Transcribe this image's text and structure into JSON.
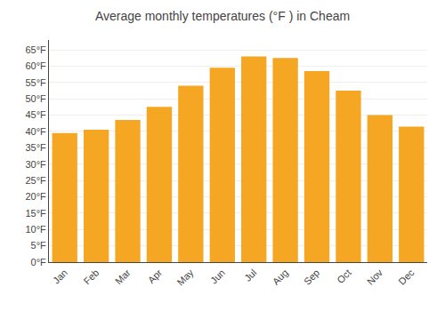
{
  "chart_data": {
    "type": "bar",
    "title": "Average monthly temperatures (°F ) in Cheam",
    "categories": [
      "Jan",
      "Feb",
      "Mar",
      "Apr",
      "May",
      "Jun",
      "Jul",
      "Aug",
      "Sep",
      "Oct",
      "Nov",
      "Dec"
    ],
    "values": [
      39.5,
      40.5,
      43.5,
      47.5,
      54.0,
      59.5,
      63.0,
      62.5,
      58.5,
      52.5,
      45.0,
      41.5
    ],
    "color": "#F5A623",
    "ylim": [
      0,
      68
    ],
    "yticks": [
      {
        "value": 0,
        "label": "0°F"
      },
      {
        "value": 5,
        "label": "5°F"
      },
      {
        "value": 10,
        "label": "10°F"
      },
      {
        "value": 15,
        "label": "15°F"
      },
      {
        "value": 20,
        "label": "20°F"
      },
      {
        "value": 25,
        "label": "25°F"
      },
      {
        "value": 30,
        "label": "30°F"
      },
      {
        "value": 35,
        "label": "35°F"
      },
      {
        "value": 40,
        "label": "40°F"
      },
      {
        "value": 45,
        "label": "45°F"
      },
      {
        "value": 50,
        "label": "50°F"
      },
      {
        "value": 55,
        "label": "55°F"
      },
      {
        "value": 60,
        "label": "60°F"
      },
      {
        "value": 65,
        "label": "65°F"
      }
    ],
    "grid": true
  }
}
